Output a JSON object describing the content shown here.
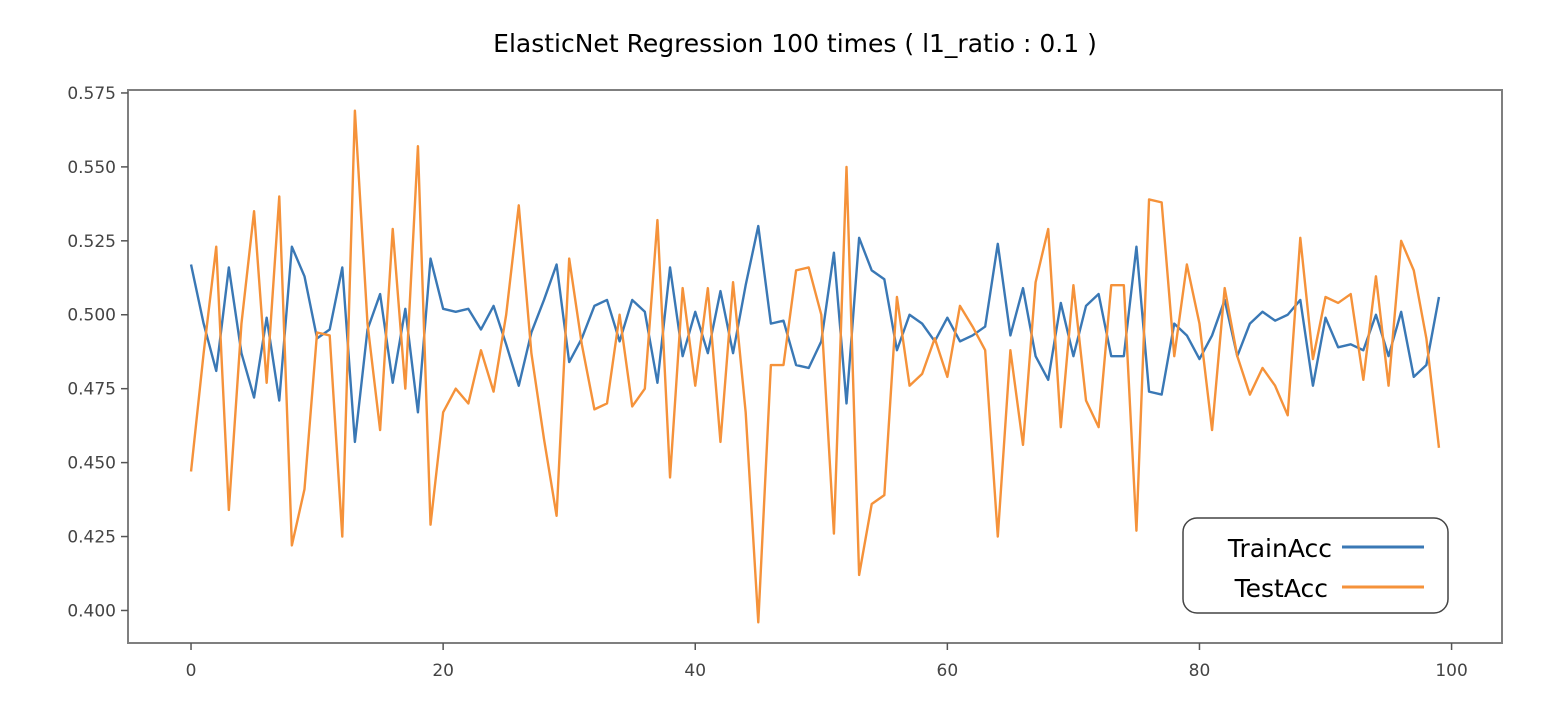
{
  "chart_data": {
    "type": "line",
    "title": "ElasticNet Regression 100 times ( l1_ratio : 0.1 )",
    "xlabel": "",
    "ylabel": "",
    "xlim": [
      -5,
      104
    ],
    "ylim": [
      0.389,
      0.576
    ],
    "x_ticks": [
      0,
      20,
      40,
      60,
      80,
      100
    ],
    "y_ticks": [
      0.4,
      0.425,
      0.45,
      0.475,
      0.5,
      0.525,
      0.55,
      0.575
    ],
    "x_tick_labels": [
      "0",
      "20",
      "40",
      "60",
      "80",
      "100"
    ],
    "y_tick_labels": [
      "0.400",
      "0.425",
      "0.450",
      "0.475",
      "0.500",
      "0.525",
      "0.550",
      "0.575"
    ],
    "grid": false,
    "legend_position": "lower-right",
    "series": [
      {
        "name": "TrainAcc",
        "color": "#3a78b5",
        "values": [
          0.517,
          0.497,
          0.481,
          0.516,
          0.487,
          0.472,
          0.499,
          0.471,
          0.523,
          0.513,
          0.492,
          0.495,
          0.516,
          0.457,
          0.495,
          0.507,
          0.477,
          0.502,
          0.467,
          0.519,
          0.502,
          0.501,
          0.502,
          0.495,
          0.503,
          0.49,
          0.476,
          0.494,
          0.505,
          0.517,
          0.484,
          0.492,
          0.503,
          0.505,
          0.491,
          0.505,
          0.501,
          0.477,
          0.516,
          0.486,
          0.501,
          0.487,
          0.508,
          0.487,
          0.51,
          0.53,
          0.497,
          0.498,
          0.483,
          0.482,
          0.491,
          0.521,
          0.47,
          0.526,
          0.515,
          0.512,
          0.488,
          0.5,
          0.497,
          0.491,
          0.499,
          0.491,
          0.493,
          0.496,
          0.524,
          0.493,
          0.509,
          0.486,
          0.478,
          0.504,
          0.486,
          0.503,
          0.507,
          0.486,
          0.486,
          0.523,
          0.474,
          0.473,
          0.497,
          0.493,
          0.485,
          0.493,
          0.505,
          0.486,
          0.497,
          0.501,
          0.498,
          0.5,
          0.505,
          0.476,
          0.499,
          0.489,
          0.49,
          0.488,
          0.5,
          0.486,
          0.501,
          0.479,
          0.483,
          0.506
        ]
      },
      {
        "name": "TestAcc",
        "color": "#f5923a",
        "values": [
          0.447,
          0.487,
          0.523,
          0.434,
          0.497,
          0.535,
          0.477,
          0.54,
          0.422,
          0.441,
          0.494,
          0.493,
          0.425,
          0.569,
          0.497,
          0.461,
          0.529,
          0.475,
          0.557,
          0.429,
          0.467,
          0.475,
          0.47,
          0.488,
          0.474,
          0.5,
          0.537,
          0.487,
          0.458,
          0.432,
          0.519,
          0.49,
          0.468,
          0.47,
          0.5,
          0.469,
          0.475,
          0.532,
          0.445,
          0.509,
          0.476,
          0.509,
          0.457,
          0.511,
          0.467,
          0.396,
          0.483,
          0.483,
          0.515,
          0.516,
          0.5,
          0.426,
          0.55,
          0.412,
          0.436,
          0.439,
          0.506,
          0.476,
          0.48,
          0.492,
          0.479,
          0.503,
          0.496,
          0.488,
          0.425,
          0.488,
          0.456,
          0.511,
          0.529,
          0.462,
          0.51,
          0.471,
          0.462,
          0.51,
          0.51,
          0.427,
          0.539,
          0.538,
          0.486,
          0.517,
          0.497,
          0.461,
          0.509,
          0.486,
          0.473,
          0.482,
          0.476,
          0.466,
          0.526,
          0.485,
          0.506,
          0.504,
          0.507,
          0.478,
          0.513,
          0.476,
          0.525,
          0.515,
          0.492,
          0.455
        ]
      }
    ]
  }
}
